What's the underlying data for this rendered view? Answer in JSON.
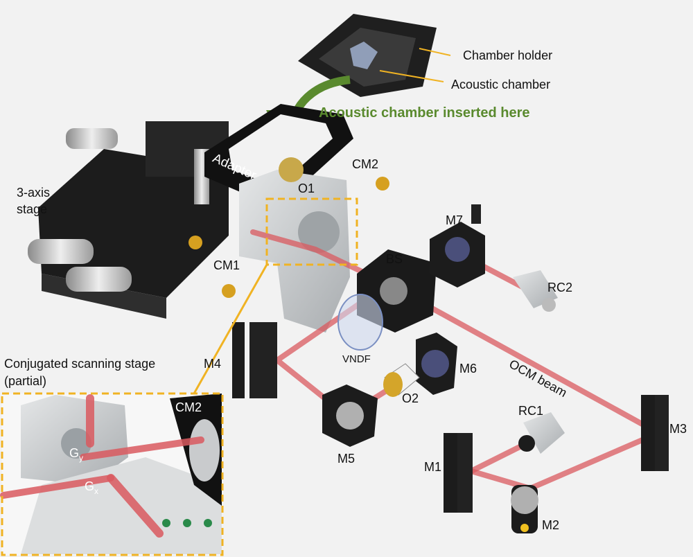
{
  "labels": {
    "chamber_holder": "Chamber holder",
    "acoustic_chamber": "Acoustic chamber",
    "inserted_here": "Acoustic chamber inserted here",
    "adapter": "Adapter",
    "cm2": "CM2",
    "o1": "O1",
    "stage_line1": "3-axis",
    "stage_line2": "stage",
    "cm1": "CM1",
    "m7": "M7",
    "bs": "BS",
    "rc2": "RC2",
    "vndf": "VNDF",
    "m4": "M4",
    "m6": "M6",
    "ocm_beam": "OCM beam",
    "o2": "O2",
    "rc1": "RC1",
    "m3": "M3",
    "m1": "M1",
    "m5": "M5",
    "m2": "M2",
    "conj_line1": "Conjugated scanning stage",
    "conj_line2": "(partial)",
    "inset_cm2": "CM2",
    "gy_base": "G",
    "gy_sub": "y",
    "gx_base": "G",
    "gx_sub": "x"
  },
  "colors": {
    "beam": "#d9595f",
    "callout": "#f0b323",
    "highlight_green": "#5a8a2e",
    "hardware_black": "#1c1c1c",
    "aluminum": "#c9ccce"
  }
}
